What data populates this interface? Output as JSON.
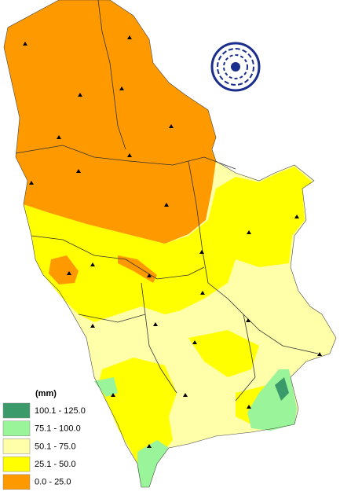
{
  "legend": {
    "title": "(mm)",
    "items": [
      {
        "label": "100.1 - 125.0",
        "color": "#3a9a6a"
      },
      {
        "label": "75.1 - 100.0",
        "color": "#9af59a"
      },
      {
        "label": "50.1 - 75.0",
        "color": "#ffffaa"
      },
      {
        "label": "25.1 - 50.0",
        "color": "#ffff00"
      },
      {
        "label": "0.0 - 25.0",
        "color": "#ff9900"
      }
    ]
  }
}
